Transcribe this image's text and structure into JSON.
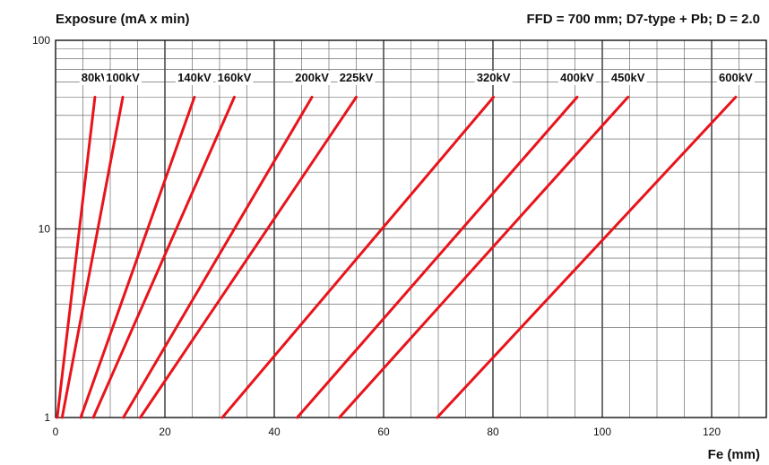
{
  "chart_data": {
    "type": "line",
    "title_left": "Exposure (mA x min)",
    "title_right": "FFD = 700 mm; D7-type + Pb; D = 2.0",
    "xlabel": "Fe (mm)",
    "ylabel": "",
    "xlim": [
      0,
      130
    ],
    "ylim": [
      1,
      100
    ],
    "y_scale": "log",
    "x_ticks": [
      0,
      20,
      40,
      60,
      80,
      100,
      120
    ],
    "y_ticks": [
      1,
      10,
      100
    ],
    "grid": true,
    "line_color": "#e8141b",
    "series": [
      {
        "name": "80kV",
        "points": [
          [
            0.3,
            1
          ],
          [
            7.2,
            50
          ]
        ]
      },
      {
        "name": "100kV",
        "points": [
          [
            1.2,
            1
          ],
          [
            12.3,
            50
          ]
        ]
      },
      {
        "name": "140kV",
        "points": [
          [
            4.6,
            1
          ],
          [
            25.4,
            50
          ]
        ]
      },
      {
        "name": "160kV",
        "points": [
          [
            6.9,
            1
          ],
          [
            32.7,
            50
          ]
        ]
      },
      {
        "name": "200kV",
        "points": [
          [
            12.4,
            1
          ],
          [
            46.9,
            50
          ]
        ]
      },
      {
        "name": "225kV",
        "points": [
          [
            15.5,
            1
          ],
          [
            55.0,
            50
          ]
        ]
      },
      {
        "name": "320kV",
        "points": [
          [
            30.5,
            1
          ],
          [
            80.1,
            50
          ]
        ]
      },
      {
        "name": "400kV",
        "points": [
          [
            44.2,
            1
          ],
          [
            95.4,
            50
          ]
        ]
      },
      {
        "name": "450kV",
        "points": [
          [
            51.9,
            1
          ],
          [
            104.7,
            50
          ]
        ]
      },
      {
        "name": "600kV",
        "points": [
          [
            69.8,
            1
          ],
          [
            124.4,
            50
          ]
        ]
      }
    ]
  }
}
